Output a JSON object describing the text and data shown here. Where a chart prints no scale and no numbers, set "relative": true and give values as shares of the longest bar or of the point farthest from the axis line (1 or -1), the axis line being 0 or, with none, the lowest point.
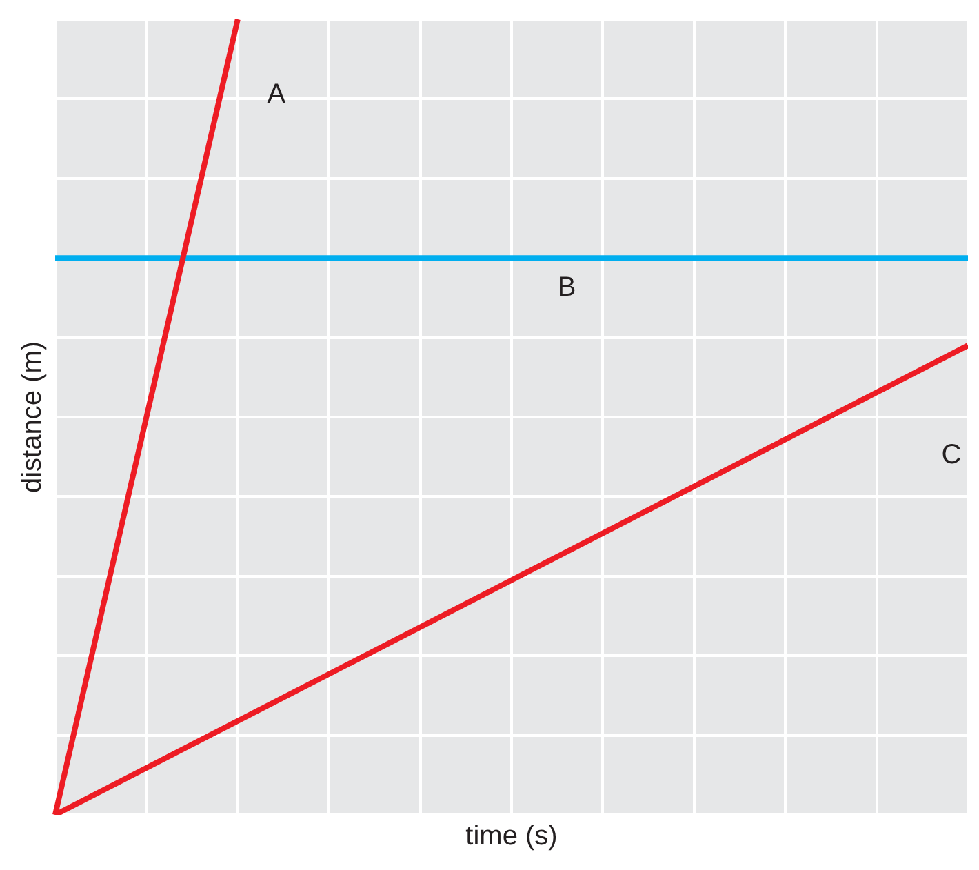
{
  "chart_data": {
    "type": "line",
    "relative": true,
    "xlabel": "time (s)",
    "ylabel": "distance (m)",
    "categories": [
      null,
      null,
      null,
      null,
      null,
      null,
      null,
      null,
      null,
      null,
      null
    ],
    "grid": true,
    "legend": false,
    "marker": "none",
    "line_style": "solid",
    "series": [
      {
        "name": "A",
        "color": "#ed1c24",
        "values": [
          0,
          null,
          1,
          null,
          null,
          null,
          null,
          null,
          null,
          null,
          null
        ]
      },
      {
        "name": "B",
        "color": "#00aeef",
        "values": [
          0.7,
          null,
          null,
          null,
          null,
          null,
          null,
          null,
          null,
          null,
          0.7
        ]
      },
      {
        "name": "C",
        "color": "#ed1c24",
        "values": [
          0,
          null,
          null,
          null,
          null,
          null,
          null,
          null,
          null,
          null,
          0.59
        ]
      }
    ]
  }
}
